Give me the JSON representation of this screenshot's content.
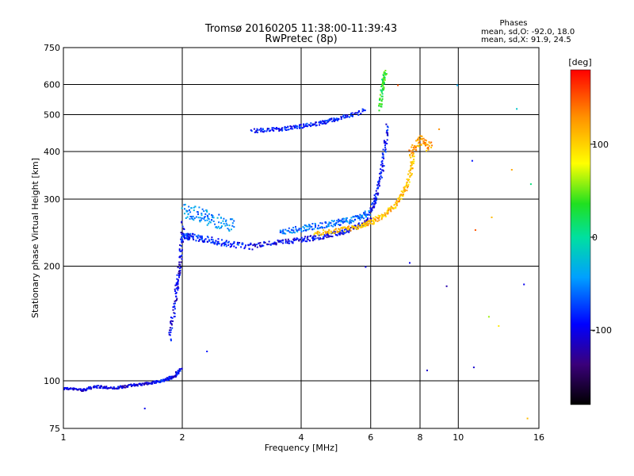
{
  "chart_data": {
    "type": "scatter",
    "title": "Tromsø 20160205 11:38:00-11:39:43",
    "subtitle": "RwPretec (8p)",
    "xlabel": "Frequency [MHz]",
    "ylabel": "Stationary phase Virtual Height [km]",
    "x_scale": "log",
    "y_scale": "log",
    "xlim": [
      1,
      16
    ],
    "ylim": [
      75,
      750
    ],
    "x_ticks": [
      1,
      2,
      4,
      6,
      8,
      10,
      16
    ],
    "x_tick_labels": [
      "1",
      "2",
      "4",
      "6",
      "8",
      "10",
      "16"
    ],
    "y_ticks": [
      75,
      100,
      200,
      300,
      400,
      500,
      600,
      750
    ],
    "y_tick_labels": [
      "75",
      "100",
      "200",
      "300",
      "400",
      "500",
      "600",
      "750"
    ],
    "grid": true,
    "stats": {
      "title": "Phases",
      "line1": "mean, sd,O: -92.0, 18.0",
      "line2": "mean, sd,X:  91.9, 24.5"
    },
    "colorbar": {
      "label": "[deg]",
      "range": [
        -180,
        180
      ],
      "ticks": [
        100,
        0,
        -100
      ],
      "tick_labels": [
        "100",
        "0",
        "-100"
      ]
    },
    "traces": [
      {
        "x": [
          1.0,
          1.12,
          1.2,
          1.35,
          1.5,
          1.65
        ],
        "y": [
          96,
          95,
          97,
          96,
          98,
          99
        ],
        "phase": -105,
        "spread": 3
      },
      {
        "x": [
          1.65,
          1.8,
          1.9,
          1.98
        ],
        "y": [
          99,
          101,
          103,
          108
        ],
        "phase": -95,
        "spread": 3
      },
      {
        "x": [
          1.85,
          1.92,
          1.96,
          2.0
        ],
        "y": [
          130,
          170,
          200,
          260
        ],
        "phase": -100,
        "spread": 10
      },
      {
        "x": [
          2.0,
          2.1,
          2.3,
          2.6,
          3.0
        ],
        "y": [
          240,
          240,
          236,
          230,
          226
        ],
        "phase": -85,
        "spread": 8
      },
      {
        "x": [
          2.0,
          2.2,
          2.4,
          2.7
        ],
        "y": [
          280,
          275,
          265,
          255
        ],
        "phase": -50,
        "spread": 18
      },
      {
        "x": [
          3.0,
          3.5,
          4.0,
          4.5,
          5.0,
          5.5,
          6.0
        ],
        "y": [
          228,
          232,
          236,
          240,
          246,
          255,
          268
        ],
        "phase": -100,
        "spread": 6
      },
      {
        "x": [
          3.5,
          4.0,
          4.5,
          5.0,
          5.5,
          6.0
        ],
        "y": [
          248,
          252,
          258,
          262,
          268,
          280
        ],
        "phase": -60,
        "spread": 8
      },
      {
        "x": [
          6.0,
          6.2,
          6.4,
          6.6
        ],
        "y": [
          280,
          310,
          370,
          470
        ],
        "phase": -95,
        "spread": 10
      },
      {
        "x": [
          6.3,
          6.4,
          6.5
        ],
        "y": [
          520,
          600,
          650
        ],
        "phase": 30,
        "spread": 6
      },
      {
        "x": [
          4.3,
          5.0,
          5.6,
          6.0,
          6.5,
          7.0,
          7.4,
          7.7
        ],
        "y": [
          245,
          250,
          255,
          262,
          275,
          295,
          330,
          390
        ],
        "phase": 110,
        "spread": 6
      },
      {
        "x": [
          3.0,
          3.5,
          4.0,
          4.5,
          5.0,
          5.8
        ],
        "y": [
          455,
          460,
          468,
          478,
          492,
          515
        ],
        "phase": -90,
        "spread": 5
      },
      {
        "x": [
          7.5,
          8.0,
          8.5
        ],
        "y": [
          400,
          430,
          410
        ],
        "phase": 120,
        "spread": 15
      }
    ],
    "outliers": [
      {
        "x": 1.6,
        "y": 85,
        "phase": -100
      },
      {
        "x": 2.3,
        "y": 120,
        "phase": -90
      },
      {
        "x": 5.8,
        "y": 200,
        "phase": -100
      },
      {
        "x": 7.5,
        "y": 205,
        "phase": -100
      },
      {
        "x": 8.3,
        "y": 107,
        "phase": -110
      },
      {
        "x": 9.3,
        "y": 178,
        "phase": -120
      },
      {
        "x": 10.9,
        "y": 109,
        "phase": -110
      },
      {
        "x": 14.6,
        "y": 180,
        "phase": -100
      },
      {
        "x": 11.0,
        "y": 250,
        "phase": 150
      },
      {
        "x": 10.8,
        "y": 380,
        "phase": -90
      },
      {
        "x": 11.9,
        "y": 148,
        "phase": 60
      },
      {
        "x": 13.6,
        "y": 360,
        "phase": 120
      },
      {
        "x": 14.0,
        "y": 520,
        "phase": -20
      },
      {
        "x": 14.9,
        "y": 80,
        "phase": 110
      },
      {
        "x": 12.6,
        "y": 140,
        "phase": 90
      },
      {
        "x": 9.9,
        "y": 600,
        "phase": -40
      },
      {
        "x": 8.9,
        "y": 460,
        "phase": 130
      },
      {
        "x": 7.0,
        "y": 600,
        "phase": 150
      },
      {
        "x": 15.2,
        "y": 330,
        "phase": 10
      },
      {
        "x": 12.1,
        "y": 270,
        "phase": 110
      }
    ]
  }
}
